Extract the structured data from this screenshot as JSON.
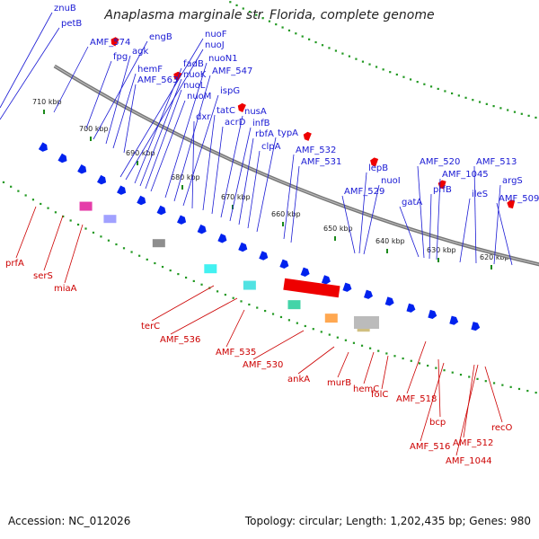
{
  "title": "Anaplasma marginale str. Florida, complete genome",
  "footer": {
    "accession": "Accession: NC_012026",
    "topology": "Topology: circular; Length: 1,202,435 bp; Genes: 980"
  },
  "colors": {
    "forward_label": "#1a1ad4",
    "reverse_label": "#cc0000",
    "forward_arrow": "#0022ee",
    "reverse_arrow": "#ee0000",
    "backbone": "#888888",
    "ring_dot": "#229922"
  },
  "scale_labels": [
    "710 kbp",
    "700 kbp",
    "690 kbp",
    "680 kbp",
    "670 kbp",
    "660 kbp",
    "650 kbp",
    "640 kbp",
    "630 kbp",
    "620 kbp"
  ],
  "forward_labels": [
    "znuB",
    "petB",
    "AMF_574",
    "fpg",
    "engB",
    "agk",
    "hemF",
    "AMF_563",
    "nuoF",
    "nuoJ",
    "fadB",
    "nuoK",
    "nuoL",
    "nuoM",
    "nuoN1",
    "AMF_547",
    "ispG",
    "dxr",
    "tatC",
    "acrD",
    "nusA",
    "infB",
    "rbfA",
    "clpA",
    "typA",
    "AMF_532",
    "AMF_531",
    "AMF_529",
    "lepB",
    "nuoI",
    "gatA",
    "AMF_520",
    "prfB",
    "AMF_1045",
    "ileS",
    "AMF_513",
    "argS",
    "AMF_509"
  ],
  "reverse_labels": [
    "prfA",
    "serS",
    "miaA",
    "terC",
    "AMF_536",
    "AMF_535",
    "AMF_530",
    "ankA",
    "murB",
    "hemC",
    "folC",
    "AMF_518",
    "bcp",
    "AMF_516",
    "AMF_512",
    "AMF_1044",
    "recO"
  ]
}
